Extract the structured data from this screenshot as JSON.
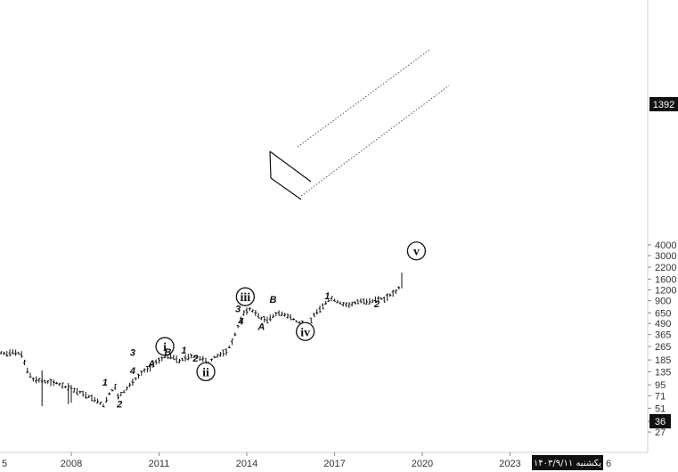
{
  "chart_data": {
    "type": "ohlc",
    "scale": "log",
    "grid": false,
    "y_ticks": [
      27,
      36,
      51,
      71,
      95,
      135,
      185,
      265,
      365,
      490,
      650,
      900,
      1200,
      1600,
      2200,
      3000,
      4000
    ],
    "x_ticks": [
      {
        "label": "2008",
        "year": 2008
      },
      {
        "label": "2011",
        "year": 2011
      },
      {
        "label": "2014",
        "year": 2014
      },
      {
        "label": "2017",
        "year": 2017
      },
      {
        "label": "2020",
        "year": 2020
      },
      {
        "label": "2023",
        "year": 2023
      }
    ],
    "x_edge_labels": {
      "left": "5",
      "right": "6"
    },
    "last_price": "1392",
    "highlighted_price": "36",
    "current_date_label": "یکشنبه ۱۴۰۳/۹/۱۱",
    "price_path": [
      [
        2004.8,
        240
      ],
      [
        2005.2,
        210
      ],
      [
        2005.5,
        225
      ],
      [
        2005.8,
        218
      ],
      [
        2006.0,
        230
      ],
      [
        2006.3,
        215
      ],
      [
        2006.5,
        140
      ],
      [
        2006.7,
        110
      ],
      [
        2006.9,
        108
      ],
      [
        2007.2,
        102
      ],
      [
        2007.5,
        100
      ],
      [
        2007.8,
        90
      ],
      [
        2008.0,
        85
      ],
      [
        2008.3,
        78
      ],
      [
        2008.6,
        70
      ],
      [
        2008.9,
        62
      ],
      [
        2009.1,
        55
      ],
      [
        2009.3,
        75
      ],
      [
        2009.5,
        90
      ],
      [
        2009.6,
        70
      ],
      [
        2009.8,
        80
      ],
      [
        2010.0,
        95
      ],
      [
        2010.3,
        120
      ],
      [
        2010.5,
        140
      ],
      [
        2010.7,
        150
      ],
      [
        2010.9,
        175
      ],
      [
        2011.1,
        190
      ],
      [
        2011.3,
        210
      ],
      [
        2011.5,
        200
      ],
      [
        2011.7,
        180
      ],
      [
        2011.9,
        195
      ],
      [
        2012.1,
        205
      ],
      [
        2012.3,
        200
      ],
      [
        2012.5,
        190
      ],
      [
        2012.7,
        170
      ],
      [
        2012.9,
        200
      ],
      [
        2013.1,
        215
      ],
      [
        2013.3,
        230
      ],
      [
        2013.5,
        300
      ],
      [
        2013.7,
        450
      ],
      [
        2013.9,
        650
      ],
      [
        2014.1,
        720
      ],
      [
        2014.3,
        650
      ],
      [
        2014.5,
        560
      ],
      [
        2014.7,
        540
      ],
      [
        2014.9,
        600
      ],
      [
        2015.1,
        650
      ],
      [
        2015.3,
        620
      ],
      [
        2015.5,
        580
      ],
      [
        2015.7,
        520
      ],
      [
        2015.9,
        490
      ],
      [
        2016.1,
        460
      ],
      [
        2016.3,
        620
      ],
      [
        2016.5,
        720
      ],
      [
        2016.7,
        850
      ],
      [
        2016.9,
        950
      ],
      [
        2017.1,
        880
      ],
      [
        2017.3,
        820
      ],
      [
        2017.5,
        800
      ],
      [
        2017.7,
        850
      ],
      [
        2017.9,
        900
      ],
      [
        2018.1,
        880
      ],
      [
        2018.3,
        900
      ],
      [
        2018.5,
        960
      ],
      [
        2018.7,
        930
      ],
      [
        2018.9,
        1050
      ],
      [
        2019.1,
        1150
      ],
      [
        2019.3,
        1392
      ]
    ],
    "annotations": [
      {
        "type": "roman",
        "label": "i",
        "x": 2011.2,
        "y": 265
      },
      {
        "type": "roman",
        "label": "ii",
        "x": 2012.6,
        "y": 135
      },
      {
        "type": "roman",
        "label": "iii",
        "x": 2013.95,
        "y": 1000
      },
      {
        "type": "roman",
        "label": "iv",
        "x": 2016.0,
        "y": 395
      },
      {
        "type": "roman",
        "label": "v",
        "x": 2019.8,
        "y": 3400
      },
      {
        "type": "wave",
        "label": "1",
        "x": 2009.15,
        "y": 103
      },
      {
        "type": "wave",
        "label": "2",
        "x": 2009.65,
        "y": 57
      },
      {
        "type": "wave",
        "label": "3",
        "x": 2010.1,
        "y": 226
      },
      {
        "type": "wave",
        "label": "4",
        "x": 2010.1,
        "y": 140
      },
      {
        "type": "wave",
        "label": "A",
        "x": 2010.75,
        "y": 168
      },
      {
        "type": "wave",
        "label": "B",
        "x": 2011.3,
        "y": 230
      },
      {
        "type": "wave",
        "label": "1",
        "x": 2011.85,
        "y": 240
      },
      {
        "type": "wave",
        "label": "2",
        "x": 2012.25,
        "y": 195
      },
      {
        "type": "wave",
        "label": "3",
        "x": 2013.7,
        "y": 725
      },
      {
        "type": "wave",
        "label": "4",
        "x": 2013.8,
        "y": 520
      },
      {
        "type": "wave",
        "label": "A",
        "x": 2014.5,
        "y": 455
      },
      {
        "type": "wave",
        "label": "B",
        "x": 2014.9,
        "y": 940
      },
      {
        "type": "wave",
        "label": "1",
        "x": 2016.75,
        "y": 1030
      },
      {
        "type": "wave",
        "label": "2",
        "x": 2018.45,
        "y": 830
      }
    ]
  }
}
